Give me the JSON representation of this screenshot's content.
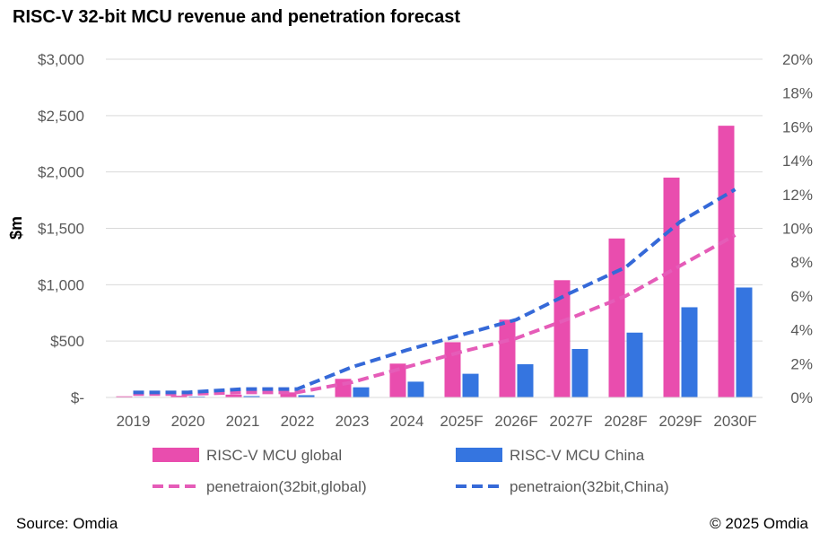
{
  "title": "RISC-V 32-bit MCU revenue and penetration forecast",
  "source": "Source: Omdia",
  "copyright": "© 2025 Omdia",
  "chart_data": {
    "type": "bar",
    "title": "RISC-V 32-bit MCU revenue and penetration forecast",
    "ylabel": "$m",
    "categories": [
      "2019",
      "2020",
      "2021",
      "2022",
      "2023",
      "2024",
      "2025F",
      "2026F",
      "2027F",
      "2028F",
      "2029F",
      "2030F"
    ],
    "ylim": [
      0,
      3000
    ],
    "y_ticks": [
      0,
      500,
      1000,
      1500,
      2000,
      2500,
      3000
    ],
    "y_tick_labels": [
      "$-",
      "$500",
      "$1,000",
      "$1,500",
      "$2,000",
      "$2,500",
      "$3,000"
    ],
    "y2lim": [
      0,
      20
    ],
    "y2_ticks": [
      0,
      2,
      4,
      6,
      8,
      10,
      12,
      14,
      16,
      18,
      20
    ],
    "y2_tick_labels": [
      "0%",
      "2%",
      "4%",
      "6%",
      "8%",
      "10%",
      "12%",
      "14%",
      "16%",
      "18%",
      "20%"
    ],
    "grid": true,
    "legend_position": "bottom",
    "series": [
      {
        "name": "RISC-V MCU global",
        "kind": "bar",
        "axis": "left",
        "color": "#E94DAE",
        "values": [
          10,
          15,
          25,
          45,
          165,
          300,
          490,
          690,
          1040,
          1410,
          1950,
          2410
        ]
      },
      {
        "name": "RISC-V MCU China",
        "kind": "bar",
        "axis": "left",
        "color": "#3575E0",
        "values": [
          5,
          8,
          12,
          20,
          90,
          140,
          210,
          295,
          430,
          575,
          800,
          975
        ]
      },
      {
        "name": "penetraion(32bit,global)",
        "kind": "line",
        "dashed": true,
        "axis": "right",
        "color": "#E55CB8",
        "values": [
          0.2,
          0.2,
          0.3,
          0.3,
          0.9,
          1.8,
          2.7,
          3.5,
          4.7,
          6.0,
          7.8,
          9.6
        ]
      },
      {
        "name": "penetraion(32bit,China)",
        "kind": "line",
        "dashed": true,
        "axis": "right",
        "color": "#3569D8",
        "values": [
          0.3,
          0.3,
          0.5,
          0.5,
          1.8,
          2.8,
          3.7,
          4.6,
          6.2,
          7.7,
          10.4,
          12.3
        ]
      }
    ]
  }
}
